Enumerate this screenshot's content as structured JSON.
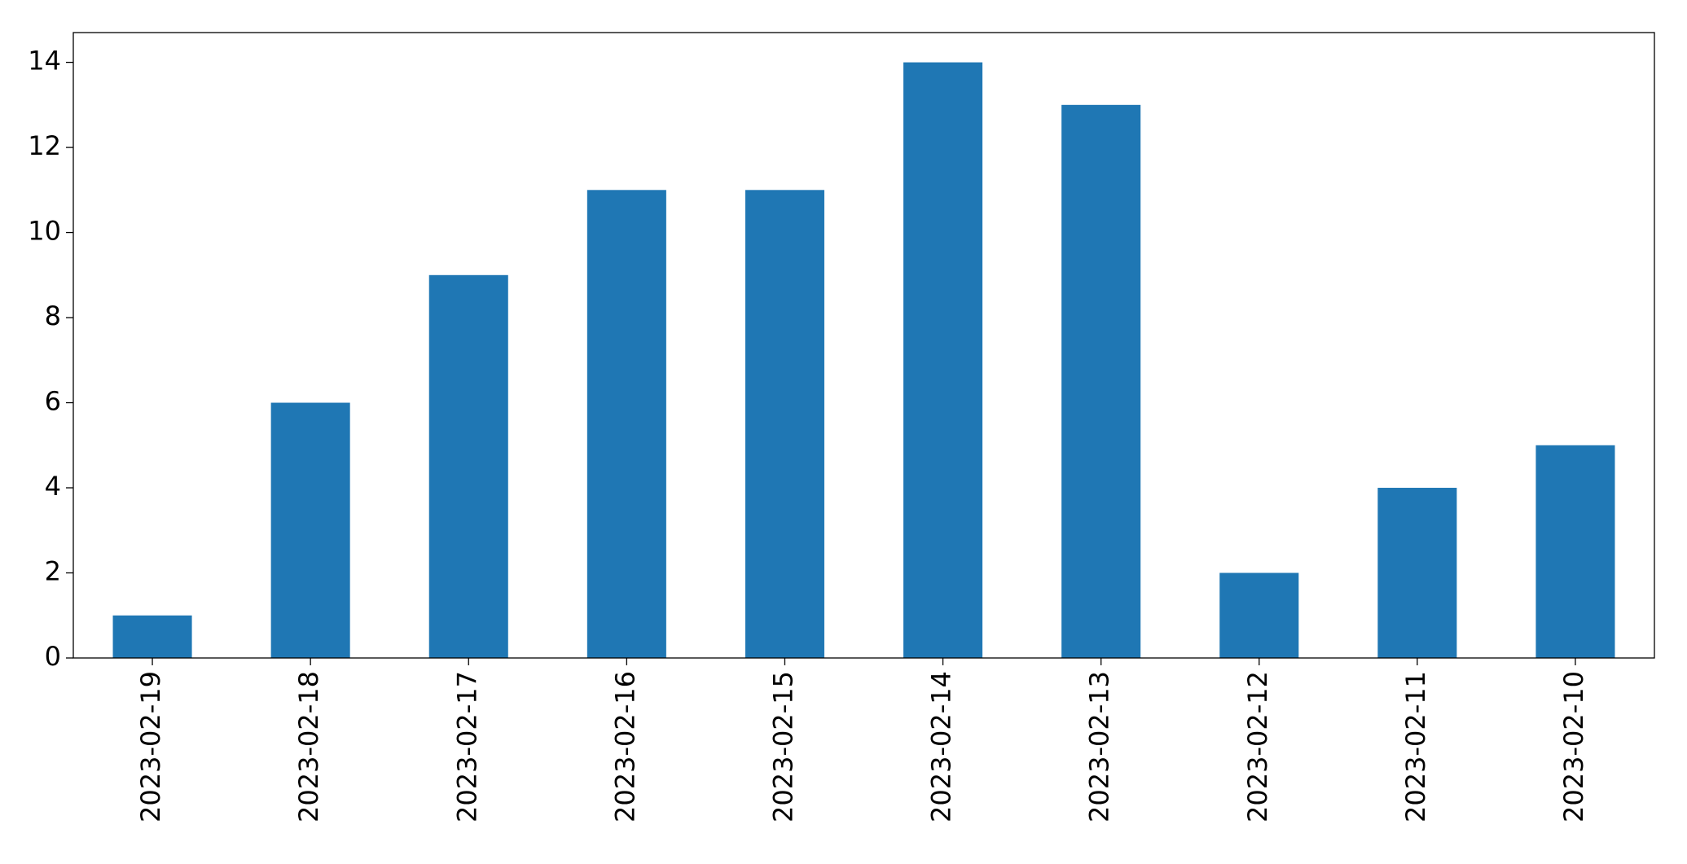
{
  "chart_data": {
    "type": "bar",
    "categories": [
      "2023-02-19",
      "2023-02-18",
      "2023-02-17",
      "2023-02-16",
      "2023-02-15",
      "2023-02-14",
      "2023-02-13",
      "2023-02-12",
      "2023-02-11",
      "2023-02-10"
    ],
    "values": [
      1,
      6,
      9,
      11,
      11,
      14,
      13,
      2,
      4,
      5
    ],
    "color": "#1f77b4",
    "ylim": [
      0,
      14.7
    ],
    "yticks": [
      0,
      2,
      4,
      6,
      8,
      10,
      12,
      14
    ],
    "grid": false
  }
}
